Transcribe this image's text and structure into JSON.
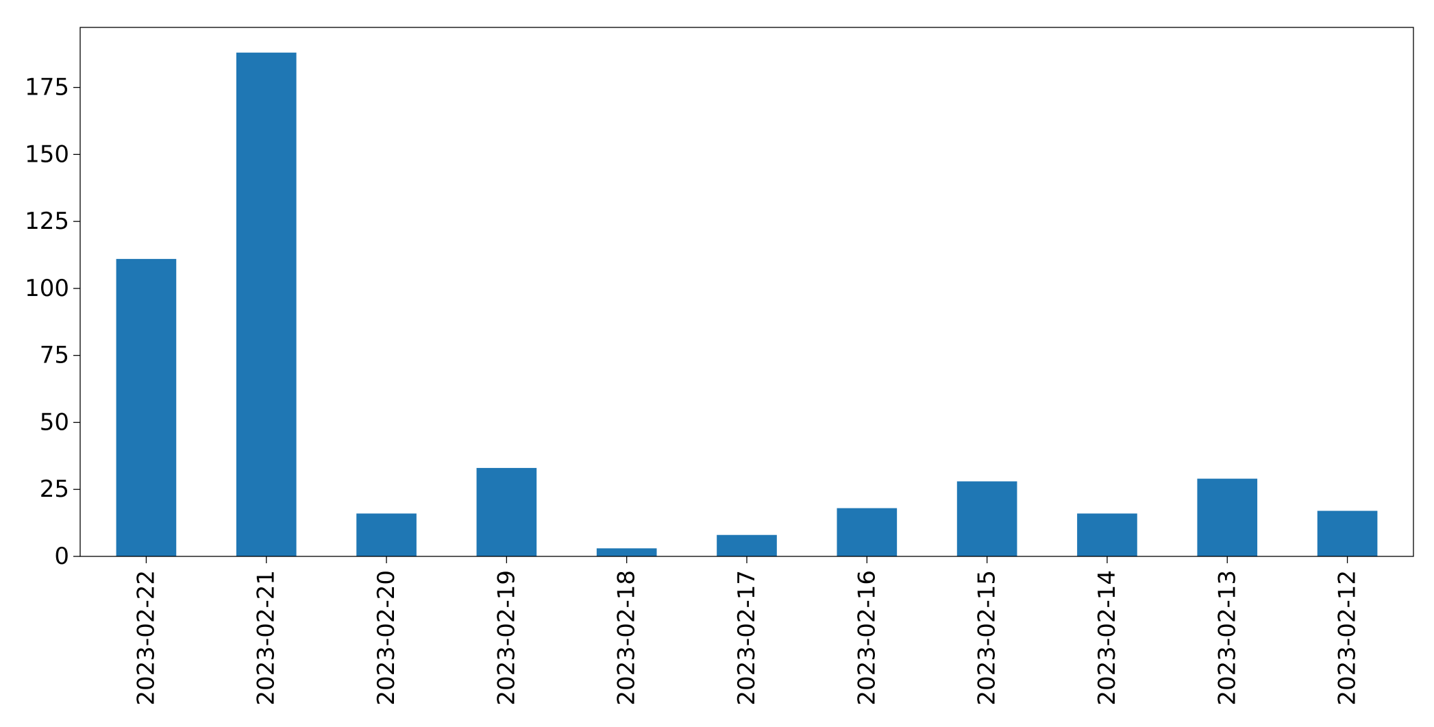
{
  "chart_data": {
    "type": "bar",
    "title": "",
    "xlabel": "",
    "ylabel": "",
    "categories": [
      "2023-02-22",
      "2023-02-21",
      "2023-02-20",
      "2023-02-19",
      "2023-02-18",
      "2023-02-17",
      "2023-02-16",
      "2023-02-15",
      "2023-02-14",
      "2023-02-13",
      "2023-02-12"
    ],
    "values": [
      111,
      188,
      16,
      33,
      3,
      8,
      18,
      28,
      16,
      29,
      17
    ],
    "ylim": [
      0,
      197.4
    ],
    "yticks": [
      0,
      25,
      50,
      75,
      100,
      125,
      150,
      175
    ],
    "grid": false,
    "legend": "none",
    "bar_color": "#1f77b4",
    "axis_color": "#000000"
  }
}
